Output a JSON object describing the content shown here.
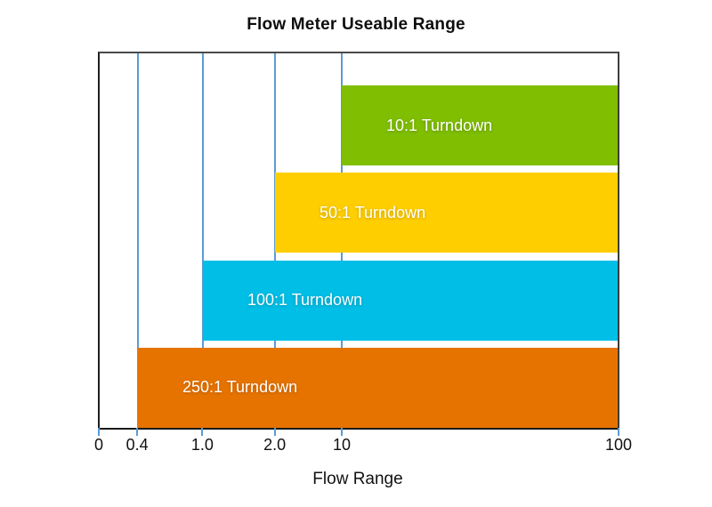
{
  "chart_data": {
    "type": "bar",
    "orientation": "horizontal",
    "title": "Flow Meter Useable Range",
    "xlabel": "Flow Range",
    "x_axis": {
      "scale": "non-linear",
      "ticks": [
        {
          "label": "0",
          "value": 0,
          "pct": 0
        },
        {
          "label": "0.4",
          "value": 0.4,
          "pct": 7.39
        },
        {
          "label": "1.0",
          "value": 1.0,
          "pct": 19.93
        },
        {
          "label": "2.0",
          "value": 2.0,
          "pct": 33.85
        },
        {
          "label": "10",
          "value": 10,
          "pct": 46.74
        },
        {
          "label": "100",
          "value": 100,
          "pct": 100
        }
      ]
    },
    "bars": [
      {
        "name": "bar-10-1-turndown",
        "label": "10:1 Turndown",
        "range_min": 10,
        "range_max": 100,
        "color": "#7FBE00"
      },
      {
        "name": "bar-50-1-turndown",
        "label": "50:1 Turndown",
        "range_min": 2.0,
        "range_max": 100,
        "color": "#FFCE00"
      },
      {
        "name": "bar-100-1-turndown",
        "label": "100:1 Turndown",
        "range_min": 1.0,
        "range_max": 100,
        "color": "#00BEE6"
      },
      {
        "name": "bar-250-1-turndown",
        "label": "250:1 Turndown",
        "range_min": 0.4,
        "range_max": 100,
        "color": "#E67300"
      }
    ],
    "colors": {
      "gridline": "#5B9BD5",
      "tick": "#5B9BD5",
      "frame": "#3d3d3d",
      "axis": "#1a1a1a",
      "bar_label_text": "#FFFFFF",
      "background": "#FFFFFF"
    },
    "legend": "none",
    "grid": "vertical-only"
  }
}
